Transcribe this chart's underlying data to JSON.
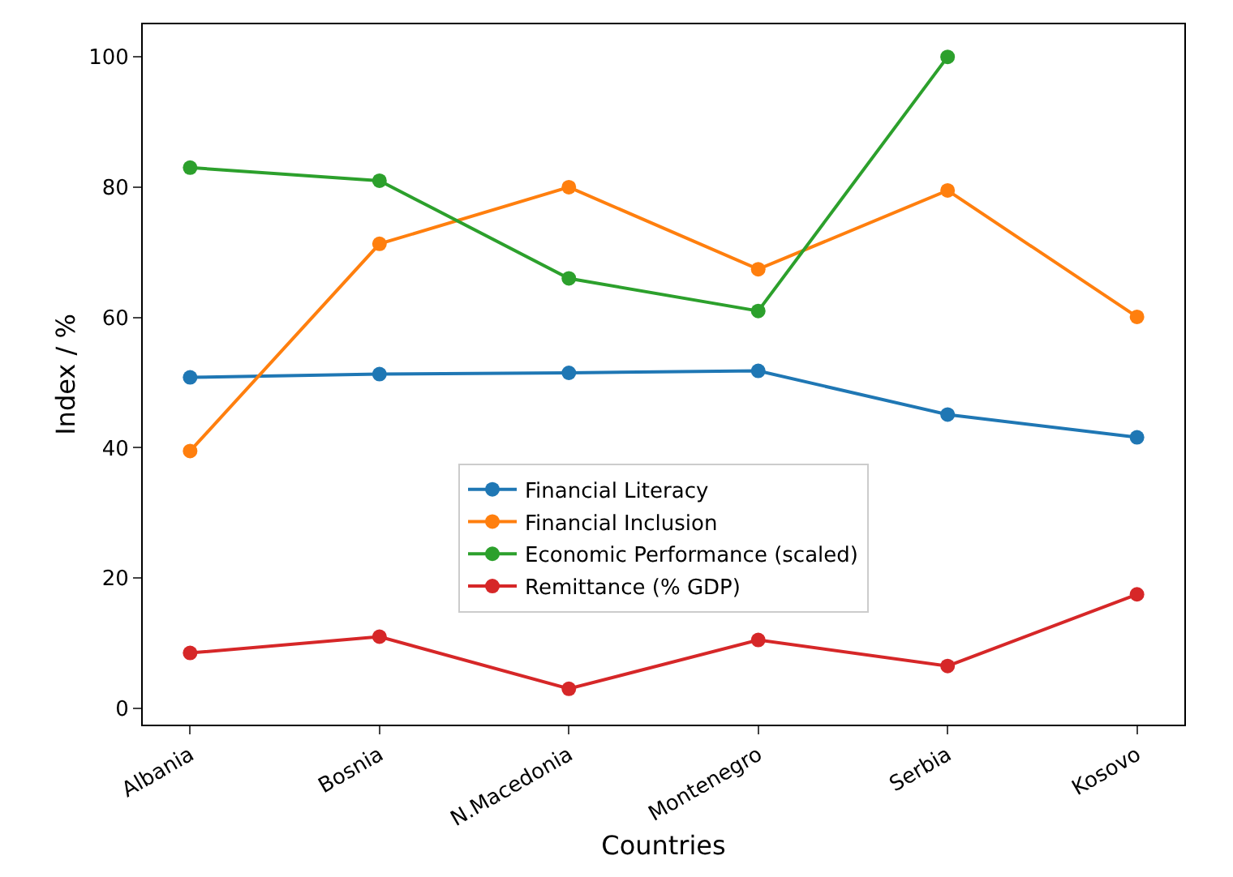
{
  "chart_data": {
    "type": "line",
    "xlabel": "Countries",
    "ylabel": "Index / %",
    "categories": [
      "Albania",
      "Bosnia",
      "N.Macedonia",
      "Montenegro",
      "Serbia",
      "Kosovo"
    ],
    "series": [
      {
        "name": "Financial Literacy",
        "color": "#1f77b4",
        "values": [
          50.8,
          51.3,
          51.5,
          51.8,
          45.1,
          41.6
        ]
      },
      {
        "name": "Financial Inclusion",
        "color": "#ff7f0e",
        "values": [
          39.5,
          71.3,
          80,
          67.4,
          79.5,
          60.1
        ]
      },
      {
        "name": "Economic Performance (scaled)",
        "color": "#2ca02c",
        "values": [
          83,
          81,
          66,
          61,
          100,
          null
        ]
      },
      {
        "name": "Remittance (% GDP)",
        "color": "#d62728",
        "values": [
          8.5,
          11,
          3,
          10.5,
          6.5,
          17.5
        ]
      }
    ],
    "ylim": [
      -2.5,
      105
    ],
    "yticks": [
      0,
      20,
      40,
      60,
      80,
      100
    ],
    "grid": false,
    "legend": "bottom",
    "marker": "circle",
    "line_style": "solid"
  }
}
